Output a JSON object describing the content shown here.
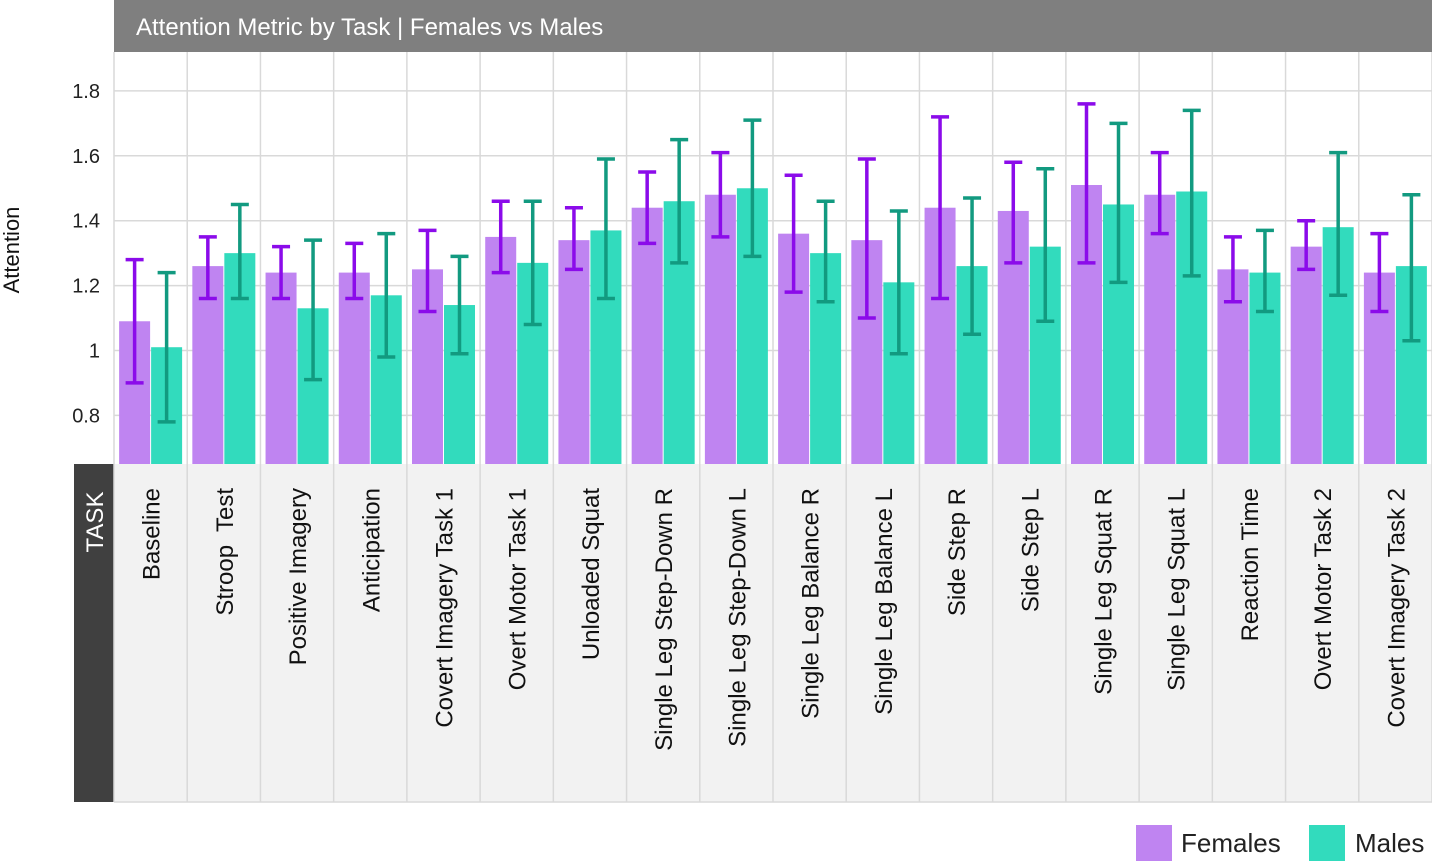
{
  "chart_data": {
    "type": "bar",
    "title": "Attention Metric by Task | Females vs Males",
    "ylabel": "Attention",
    "xlabel": "TASK",
    "ylim": [
      0.65,
      1.92
    ],
    "yticks": [
      0.8,
      1,
      1.2,
      1.4,
      1.6,
      1.8
    ],
    "ytick_labels": [
      "0.8",
      "1",
      "1.2",
      "1.4",
      "1.6",
      "1.8"
    ],
    "grid": true,
    "legend_position": "bottom-right",
    "categories": [
      "Baseline",
      "Stroop  Test",
      "Positive Imagery",
      "Anticipation",
      "Covert Imagery Task 1",
      "Overt Motor Task 1",
      "Unloaded Squat",
      "Single Leg Step-Down R",
      "Single Leg Step-Down L",
      "Single Leg Balance R",
      "Single Leg Balance L",
      "Side Step R",
      "Side Step L",
      "Single Leg Squat R",
      "Single Leg Squat L",
      "Reaction Time",
      "Overt Motor Task 2",
      "Covert Imagery Task 2"
    ],
    "series": [
      {
        "name": "Females",
        "color": "#bf84f1",
        "error_color": "#8b0bea",
        "values": [
          1.09,
          1.26,
          1.24,
          1.24,
          1.25,
          1.35,
          1.34,
          1.44,
          1.48,
          1.36,
          1.34,
          1.44,
          1.43,
          1.51,
          1.48,
          1.25,
          1.32,
          1.24
        ],
        "error_low": [
          0.9,
          1.16,
          1.16,
          1.16,
          1.12,
          1.24,
          1.25,
          1.33,
          1.35,
          1.18,
          1.1,
          1.16,
          1.27,
          1.27,
          1.36,
          1.15,
          1.25,
          1.12
        ],
        "error_high": [
          1.28,
          1.35,
          1.32,
          1.33,
          1.37,
          1.46,
          1.44,
          1.55,
          1.61,
          1.54,
          1.59,
          1.72,
          1.58,
          1.76,
          1.61,
          1.35,
          1.4,
          1.36
        ]
      },
      {
        "name": "Males",
        "color": "#32dbbd",
        "error_color": "#129a80",
        "values": [
          1.01,
          1.3,
          1.13,
          1.17,
          1.14,
          1.27,
          1.37,
          1.46,
          1.5,
          1.3,
          1.21,
          1.26,
          1.32,
          1.45,
          1.49,
          1.24,
          1.38,
          1.26
        ],
        "error_low": [
          0.78,
          1.16,
          0.91,
          0.98,
          0.99,
          1.08,
          1.16,
          1.27,
          1.29,
          1.15,
          0.99,
          1.05,
          1.09,
          1.21,
          1.23,
          1.12,
          1.17,
          1.03
        ],
        "error_high": [
          1.24,
          1.45,
          1.34,
          1.36,
          1.29,
          1.46,
          1.59,
          1.65,
          1.71,
          1.46,
          1.43,
          1.47,
          1.56,
          1.7,
          1.74,
          1.37,
          1.61,
          1.48
        ]
      }
    ]
  }
}
